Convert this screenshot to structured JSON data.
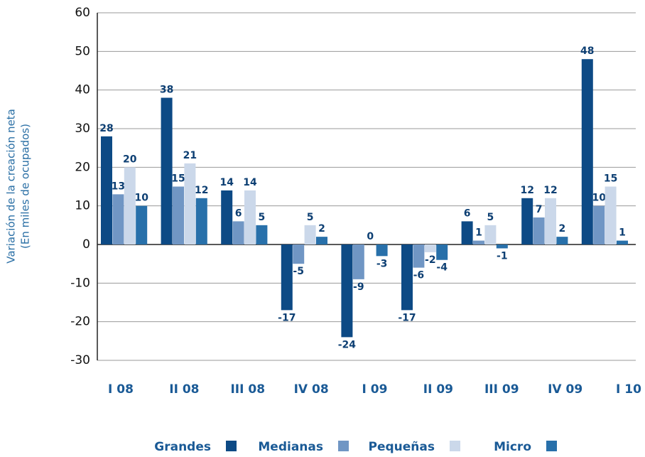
{
  "chart_data": {
    "type": "bar",
    "ylabel": [
      "Variación de la creación neta",
      "(En miles de ocupados)"
    ],
    "categories": [
      "I 08",
      "II 08",
      "III 08",
      "IV 08",
      "I 09",
      "II 09",
      "III 09",
      "IV 09",
      "I 10"
    ],
    "series": [
      {
        "name": "Grandes",
        "color": "#0d4a85",
        "values": [
          28,
          38,
          14,
          -17,
          -24,
          -17,
          6,
          12,
          48
        ]
      },
      {
        "name": "Medianas",
        "color": "#7096c4",
        "values": [
          13,
          15,
          6,
          -5,
          -9,
          -6,
          1,
          7,
          10
        ]
      },
      {
        "name": "Pequeñas",
        "color": "#cbd8ea",
        "values": [
          20,
          21,
          14,
          5,
          0,
          -2,
          5,
          12,
          15
        ]
      },
      {
        "name": "Micro",
        "color": "#2870aa",
        "values": [
          10,
          12,
          5,
          2,
          -3,
          -4,
          -1,
          2,
          1
        ]
      }
    ],
    "ylim": [
      -30,
      60
    ],
    "yticks": [
      -30,
      -20,
      -10,
      0,
      10,
      20,
      30,
      40,
      50,
      60
    ],
    "grid": true
  }
}
